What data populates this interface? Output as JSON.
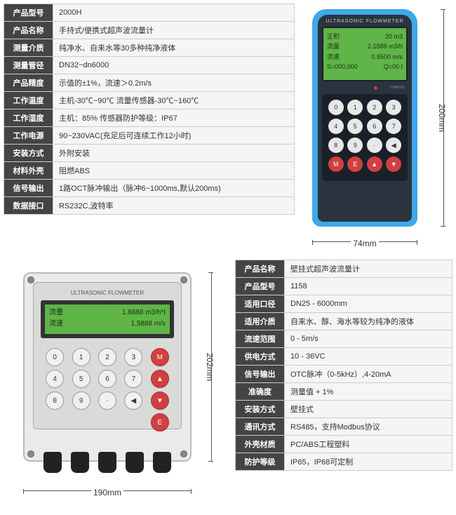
{
  "section1": {
    "specs": [
      {
        "label": "产品型号",
        "value": "2000H"
      },
      {
        "label": "产品名称",
        "value": "手持式/便携式超声波流量计"
      },
      {
        "label": "测量介质",
        "value": "纯净水、自来水等30多种纯净液体"
      },
      {
        "label": "测量管径",
        "value": "DN32~dn6000"
      },
      {
        "label": "产品精度",
        "value": "示值的±1%，流速＞0.2m/s"
      },
      {
        "label": "工作温度",
        "value": "主机-30℃~90℃  流量传感器-30℃~160℃"
      },
      {
        "label": "工作湿度",
        "value": "主机：85%  传感器防护等级：IP67"
      },
      {
        "label": "工作电源",
        "value": "90~230VAC(充足后可连续工作12小时)"
      },
      {
        "label": "安装方式",
        "value": "外附安装"
      },
      {
        "label": "材料外壳",
        "value": "阻燃ABS"
      },
      {
        "label": "信号输出",
        "value": "1路OCT脉冲输出（脉冲6~1000ms,默认200ms)"
      },
      {
        "label": "数据接口",
        "value": "RS232C,波特率"
      }
    ],
    "device": {
      "title": "ULTRASONIC FLOWMETER",
      "screen": {
        "r1l": "正积",
        "r1r": "20 m3",
        "r2l": "流量",
        "r2r": "2.1888 m3/h",
        "r3l": "流速",
        "r3r": "0.8500 m/s",
        "r4l": "S=000,000",
        "r4r": "Q=00 I"
      },
      "led_label": "CHARGE",
      "dim_h": "74mm",
      "dim_v": "200mm"
    }
  },
  "section2": {
    "specs": [
      {
        "label": "产品名称",
        "value": "壁挂式超声波流量计"
      },
      {
        "label": "产品型号",
        "value": "1158"
      },
      {
        "label": "适用口径",
        "value": "DN25 - 6000mm"
      },
      {
        "label": "适用介质",
        "value": "自来水、醇、海水等较为纯净的液体"
      },
      {
        "label": "流速范围",
        "value": "0 - 5m/s"
      },
      {
        "label": "供电方式",
        "value": "10 - 36VC"
      },
      {
        "label": "信号输出",
        "value": "OTC脉冲（0-5kHz）,4-20mA"
      },
      {
        "label": "准确度",
        "value": "测量值 + 1%"
      },
      {
        "label": "安装方式",
        "value": "壁挂式"
      },
      {
        "label": "通讯方式",
        "value": "RS485，支持Modbus协议"
      },
      {
        "label": "外壳材质",
        "value": "PC/ABS工程塑料"
      },
      {
        "label": "防护等级",
        "value": "IP65，IP68可定制"
      }
    ],
    "device": {
      "title": "ULTRASONIC FLOWMETER",
      "screen": {
        "r1l": "流量",
        "r1r": "1.8888 m3/h*I",
        "r2l": "流速",
        "r2r": "1.5888 m/s"
      },
      "dim_h": "190mm",
      "dim_v": "202mm"
    }
  }
}
